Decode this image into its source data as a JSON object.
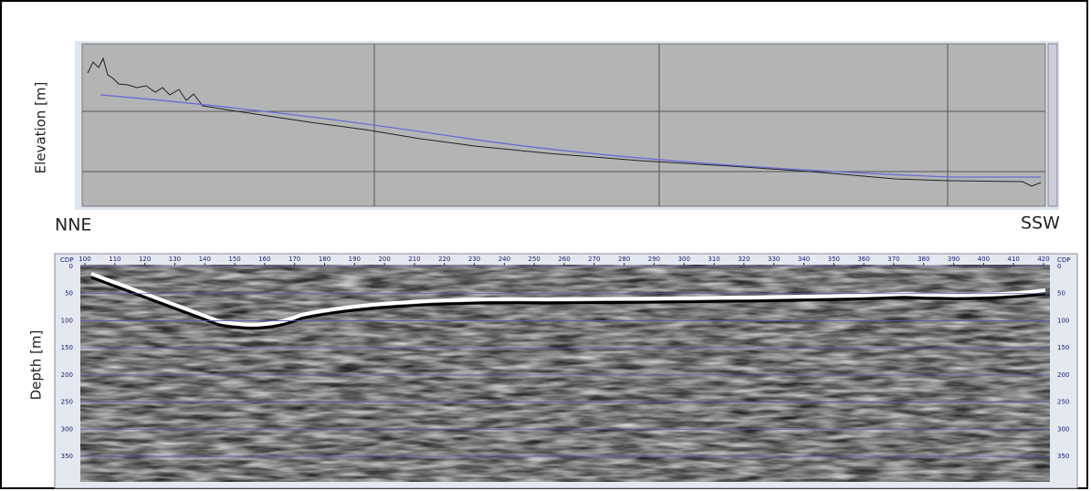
{
  "labels": {
    "elevation_axis": "Elevation [m]",
    "depth_axis": "Depth [m]",
    "left_direction": "NNE",
    "right_direction": "SSW"
  },
  "profile": {
    "cdp_label": "CDP",
    "cdp_ticks": [
      100,
      110,
      120,
      130,
      140,
      150,
      160,
      170,
      180,
      190,
      200,
      210,
      220,
      230,
      240,
      250,
      260,
      270,
      280,
      290,
      300,
      310,
      320,
      330,
      340,
      350,
      360,
      370,
      380,
      390,
      400,
      410,
      420
    ],
    "depth_ticks": [
      0,
      50,
      100,
      150,
      200,
      250,
      300,
      350
    ]
  }
}
